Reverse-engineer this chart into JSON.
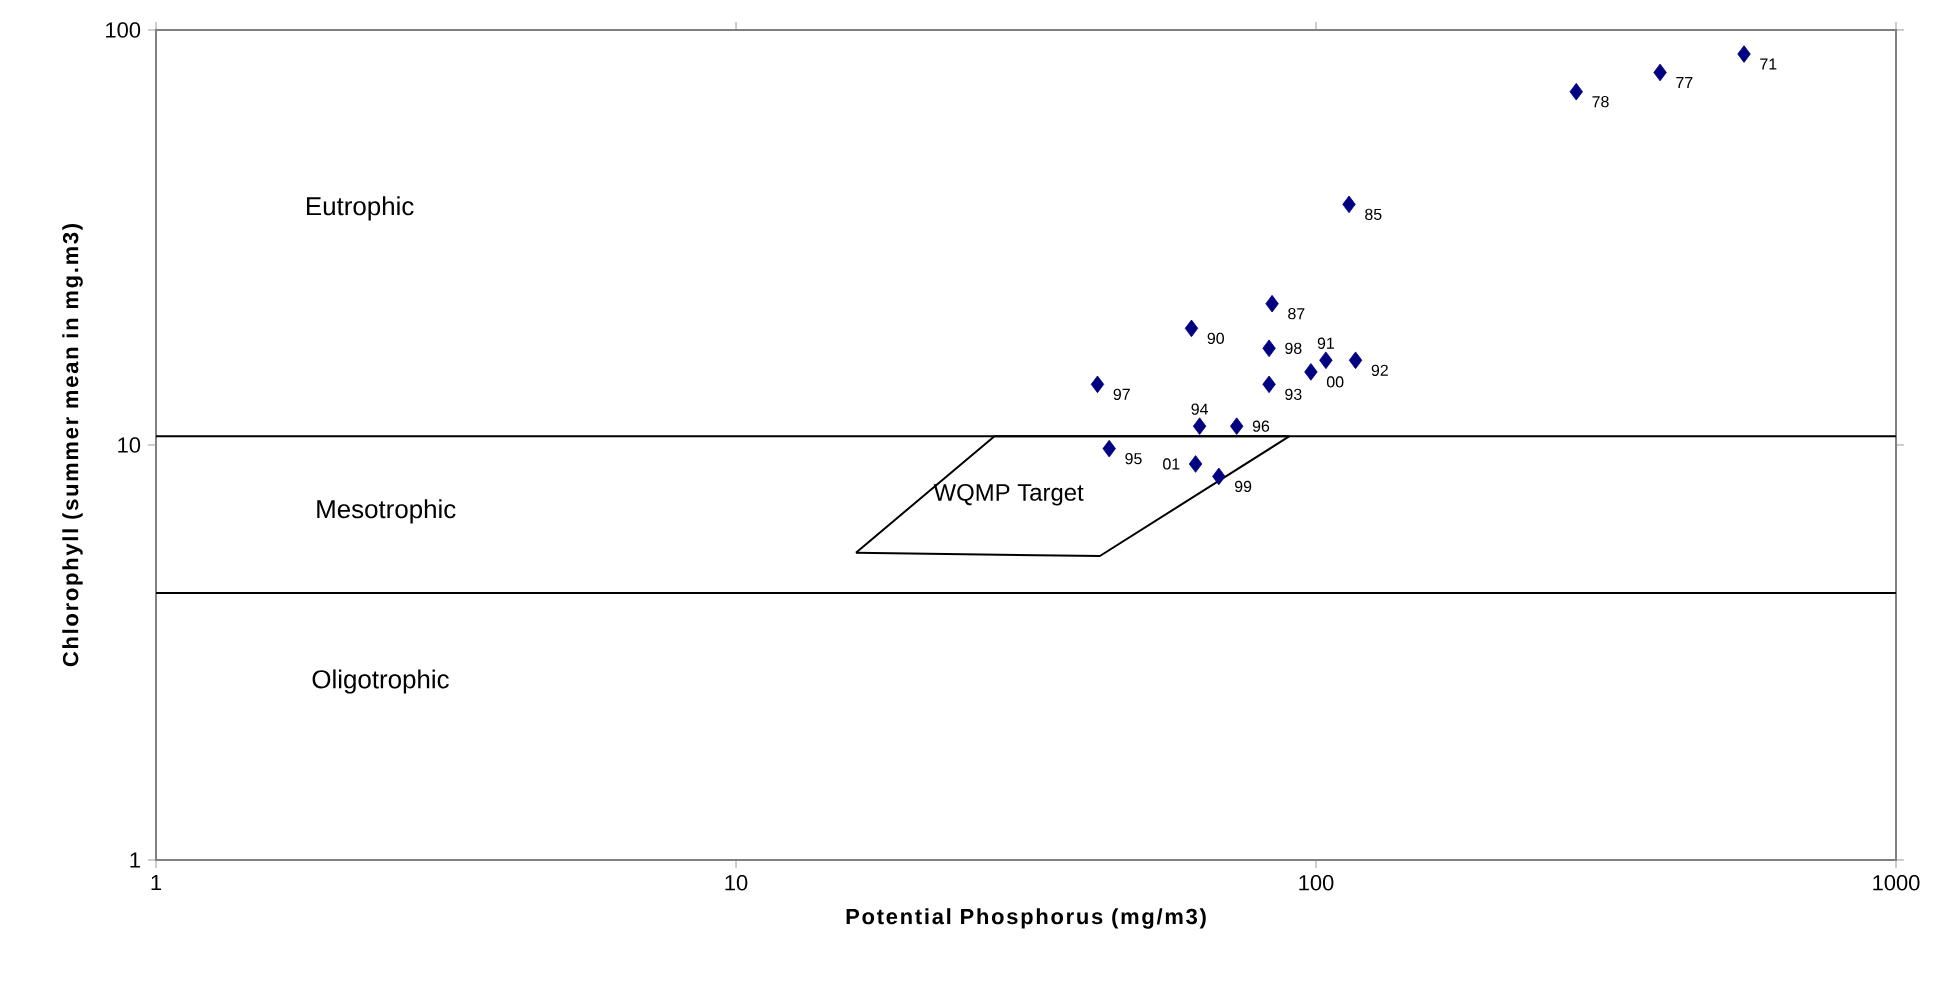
{
  "chart_data": {
    "type": "scatter",
    "xlabel": "Potential Phosphorus (mg/m3)",
    "ylabel": "Chlorophyll (summer mean in mg.m3)",
    "log": "xy",
    "xlim": [
      1,
      1000
    ],
    "ylim": [
      1,
      100
    ],
    "xticks": [
      1,
      10,
      100,
      1000
    ],
    "yticks": [
      1,
      10,
      100
    ],
    "grid": false,
    "marker": "diamond",
    "series": [
      {
        "color": "#000080",
        "x": [
          547,
          392,
          281,
          114,
          84,
          61,
          83,
          104,
          117,
          98,
          83,
          42,
          63,
          73,
          44,
          62,
          68
        ],
        "values": [
          87.5,
          79,
          71,
          38,
          21.9,
          19.1,
          17.1,
          16.0,
          16.0,
          15.0,
          14.0,
          14.0,
          11.1,
          11.1,
          9.8,
          9.0,
          8.4
        ]
      },
      {
        "type": "line",
        "color": "#000000",
        "marker": "none",
        "x": [
          16.1,
          42.4,
          90
        ],
        "values": [
          5.5,
          5.4,
          10.5
        ]
      },
      {
        "type": "line",
        "color": "#000000",
        "marker": "none",
        "x": [
          16.1,
          27.9,
          90
        ],
        "values": [
          5.5,
          10.5,
          10.5
        ]
      }
    ],
    "ref_lines": [
      {
        "axis": "y",
        "value": 10.5,
        "color": "#000000"
      },
      {
        "axis": "y",
        "value": 4.4,
        "color": "#000000"
      }
    ],
    "annotations": [
      "WQMP Target",
      "Eutrophic",
      "Mesotrophic",
      "Oligotrophic",
      {
        "text": "71",
        "x": 547,
        "y": 87.5
      },
      {
        "text": "77",
        "x": 392,
        "y": 79
      },
      {
        "text": "78",
        "x": 281,
        "y": 71
      },
      {
        "text": "85",
        "x": 114,
        "y": 38
      },
      {
        "text": "87",
        "x": 84,
        "y": 21.9
      },
      {
        "text": "90",
        "x": 61,
        "y": 19.1
      },
      {
        "text": "98",
        "x": 83,
        "y": 17.1
      },
      {
        "text": "91",
        "x": 104,
        "y": 16.0
      },
      {
        "text": "92",
        "x": 117,
        "y": 16.0
      },
      {
        "text": "00",
        "x": 98,
        "y": 15.0
      },
      {
        "text": "93",
        "x": 83,
        "y": 14.0
      },
      {
        "text": "97",
        "x": 42,
        "y": 14.0
      },
      {
        "text": "94",
        "x": 63,
        "y": 11.1
      },
      {
        "text": "96",
        "x": 73,
        "y": 11.1
      },
      {
        "text": "95",
        "x": 44,
        "y": 9.8
      },
      {
        "text": "01",
        "x": 62,
        "y": 9.0
      },
      {
        "text": "99",
        "x": 68,
        "y": 8.4
      }
    ]
  }
}
